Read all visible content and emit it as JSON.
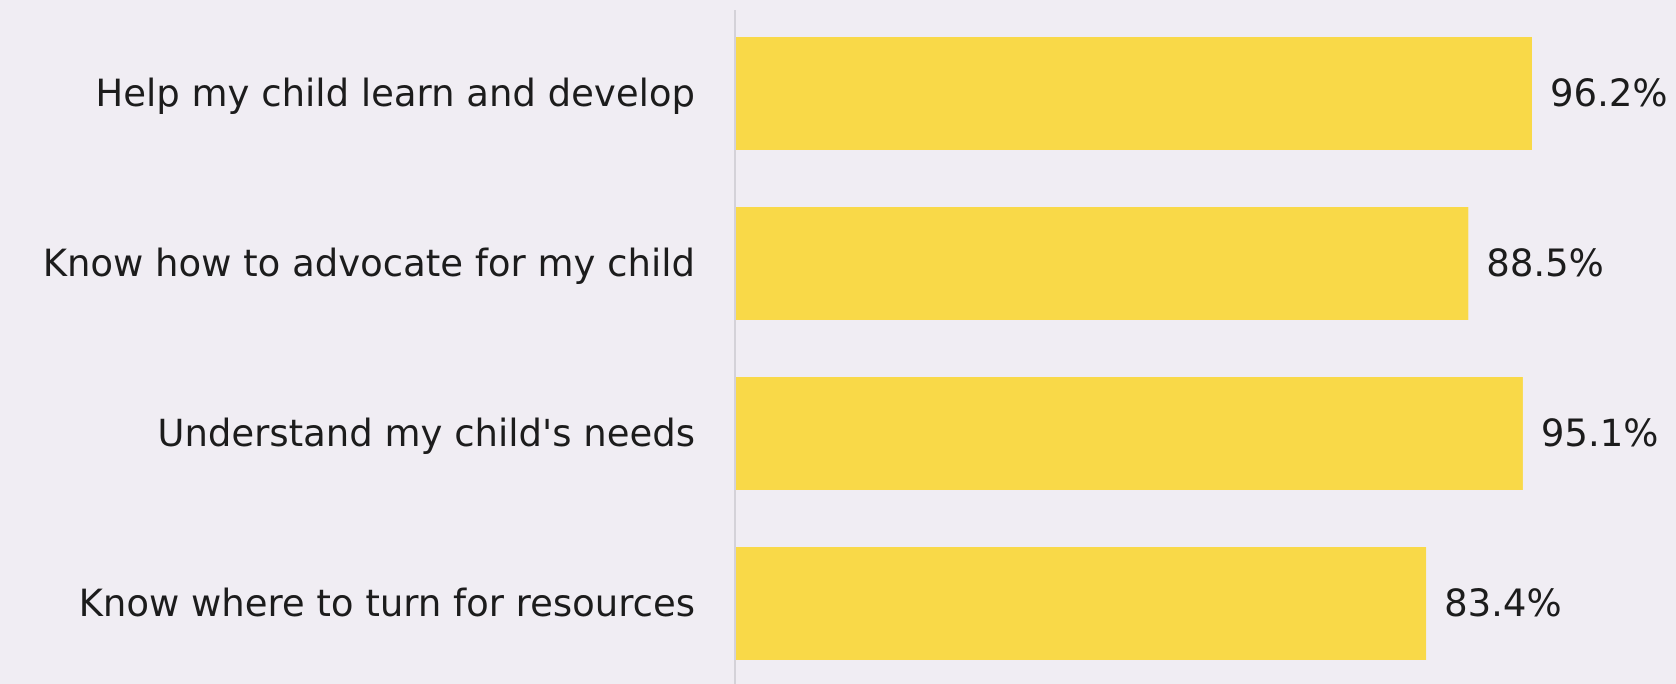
{
  "chart_data": {
    "type": "bar",
    "orientation": "horizontal",
    "categories": [
      "Help my child learn and develop",
      "Know how to advocate for my child",
      "Understand my child's needs",
      "Know where to turn for resources"
    ],
    "values": [
      96.2,
      88.5,
      95.1,
      83.4
    ],
    "value_labels": [
      "96.2%",
      "88.5%",
      "95.1%",
      "83.4%"
    ],
    "title": "",
    "xlabel": "",
    "ylabel": "",
    "bar_color": "#f9d948",
    "axis_line_color": "#d4d2d8",
    "grid": false,
    "legend": "none"
  }
}
